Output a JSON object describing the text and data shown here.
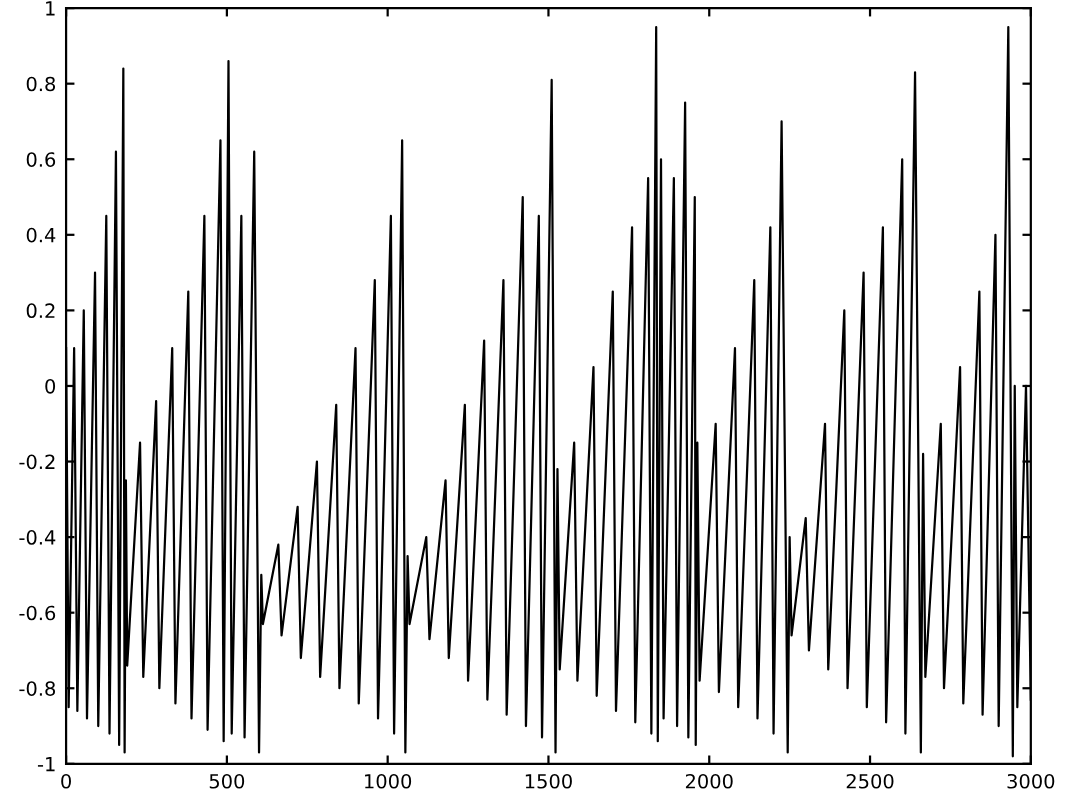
{
  "chart_data": {
    "type": "line",
    "x": [
      0,
      8,
      25,
      35,
      55,
      65,
      90,
      100,
      125,
      135,
      155,
      165,
      178,
      182,
      186,
      190,
      230,
      240,
      280,
      290,
      330,
      340,
      380,
      390,
      430,
      440,
      480,
      490,
      505,
      515,
      545,
      555,
      585,
      600,
      607,
      612,
      660,
      670,
      720,
      730,
      780,
      790,
      840,
      850,
      900,
      910,
      960,
      970,
      1010,
      1020,
      1045,
      1055,
      1062,
      1068,
      1120,
      1130,
      1180,
      1190,
      1240,
      1250,
      1300,
      1310,
      1360,
      1370,
      1420,
      1430,
      1470,
      1480,
      1510,
      1522,
      1528,
      1535,
      1580,
      1590,
      1640,
      1650,
      1700,
      1710,
      1760,
      1770,
      1810,
      1820,
      1835,
      1840,
      1850,
      1858,
      1890,
      1900,
      1925,
      1935,
      1955,
      1958,
      1963,
      1970,
      2020,
      2030,
      2080,
      2090,
      2140,
      2150,
      2190,
      2200,
      2225,
      2244,
      2250,
      2256,
      2300,
      2310,
      2360,
      2370,
      2420,
      2430,
      2480,
      2490,
      2540,
      2550,
      2600,
      2610,
      2640,
      2658,
      2665,
      2672,
      2720,
      2730,
      2780,
      2790,
      2840,
      2850,
      2890,
      2900,
      2930,
      2944,
      2950,
      2958,
      2985,
      3000
    ],
    "series": [
      {
        "color": "#000000",
        "values": [
          0.1,
          -0.85,
          0.1,
          -0.86,
          0.2,
          -0.88,
          0.3,
          -0.9,
          0.45,
          -0.92,
          0.62,
          -0.95,
          0.84,
          -0.97,
          -0.25,
          -0.74,
          -0.15,
          -0.77,
          -0.04,
          -0.8,
          0.1,
          -0.84,
          0.25,
          -0.88,
          0.45,
          -0.91,
          0.65,
          -0.94,
          0.86,
          -0.92,
          0.45,
          -0.93,
          0.62,
          -0.97,
          -0.5,
          -0.63,
          -0.42,
          -0.66,
          -0.32,
          -0.72,
          -0.2,
          -0.77,
          -0.05,
          -0.8,
          0.1,
          -0.84,
          0.28,
          -0.88,
          0.45,
          -0.92,
          0.65,
          -0.97,
          -0.45,
          -0.63,
          -0.4,
          -0.67,
          -0.25,
          -0.72,
          -0.05,
          -0.78,
          0.12,
          -0.83,
          0.28,
          -0.87,
          0.5,
          -0.9,
          0.45,
          -0.93,
          0.81,
          -0.97,
          -0.22,
          -0.75,
          -0.15,
          -0.78,
          0.05,
          -0.82,
          0.25,
          -0.86,
          0.42,
          -0.89,
          0.55,
          -0.92,
          0.95,
          -0.94,
          0.6,
          -0.88,
          0.55,
          -0.9,
          0.75,
          -0.93,
          0.5,
          -0.95,
          -0.15,
          -0.78,
          -0.1,
          -0.81,
          0.1,
          -0.85,
          0.28,
          -0.88,
          0.42,
          -0.92,
          0.7,
          -0.97,
          -0.4,
          -0.66,
          -0.35,
          -0.7,
          -0.1,
          -0.75,
          0.2,
          -0.8,
          0.3,
          -0.85,
          0.42,
          -0.89,
          0.6,
          -0.92,
          0.83,
          -0.97,
          -0.18,
          -0.77,
          -0.1,
          -0.8,
          0.05,
          -0.84,
          0.25,
          -0.87,
          0.4,
          -0.9,
          0.95,
          -0.98,
          0.0,
          -0.85,
          0.0,
          -0.83
        ]
      }
    ],
    "xlim": [
      0,
      3000
    ],
    "xticks": [
      0,
      500,
      1000,
      1500,
      2000,
      2500,
      3000
    ],
    "ylim": [
      -1,
      1
    ],
    "yticks": [
      -1,
      -0.8,
      -0.6,
      -0.4,
      -0.2,
      0,
      0.2,
      0.4,
      0.6,
      0.8,
      1
    ],
    "grid": false,
    "marker": "none",
    "line_style": "solid"
  }
}
